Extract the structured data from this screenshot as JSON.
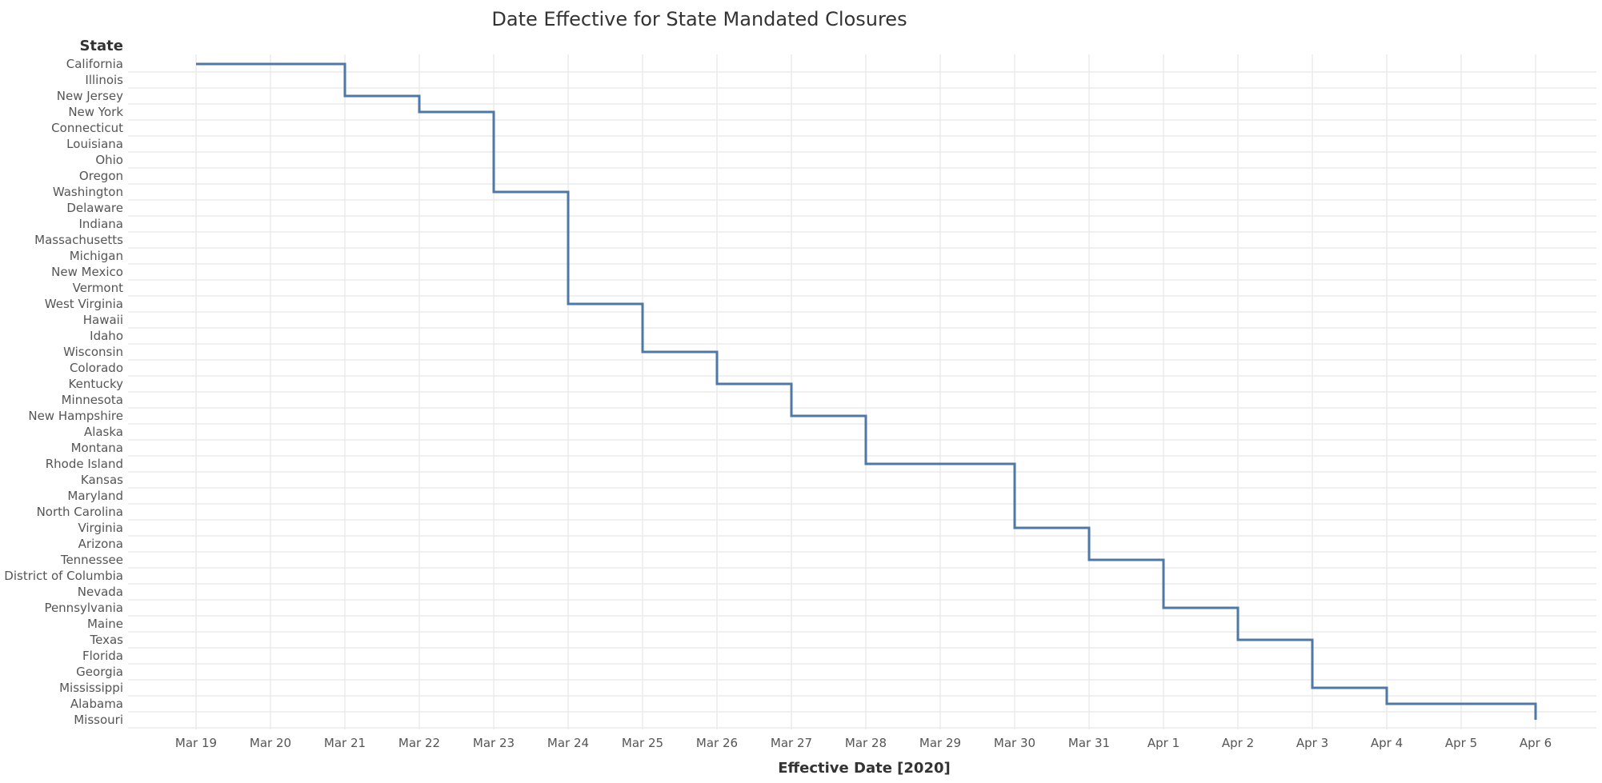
{
  "chart_data": {
    "type": "line",
    "subtype": "step",
    "title": "Date Effective for State Mandated Closures",
    "xlabel": "Effective Date [2020]",
    "ylabel": "State",
    "grid": true,
    "colors": {
      "line": "#4e79a7",
      "grid": "#ebebeb",
      "text": "#555555",
      "title": "#333333"
    },
    "x_ticks": [
      "Mar 19",
      "Mar 20",
      "Mar 21",
      "Mar 22",
      "Mar 23",
      "Mar 24",
      "Mar 25",
      "Mar 26",
      "Mar 27",
      "Mar 28",
      "Mar 29",
      "Mar 30",
      "Mar 31",
      "Apr 1",
      "Apr 2",
      "Apr 3",
      "Apr 4",
      "Apr 5",
      "Apr 6"
    ],
    "xlim": [
      "2020-03-19",
      "2020-04-06"
    ],
    "states": [
      "California",
      "Illinois",
      "New Jersey",
      "New York",
      "Connecticut",
      "Louisiana",
      "Ohio",
      "Oregon",
      "Washington",
      "Delaware",
      "Indiana",
      "Massachusetts",
      "Michigan",
      "New Mexico",
      "Vermont",
      "West Virginia",
      "Hawaii",
      "Idaho",
      "Wisconsin",
      "Colorado",
      "Kentucky",
      "Minnesota",
      "New Hampshire",
      "Alaska",
      "Montana",
      "Rhode Island",
      "Kansas",
      "Maryland",
      "North Carolina",
      "Virginia",
      "Arizona",
      "Tennessee",
      "District of Columbia",
      "Nevada",
      "Pennsylvania",
      "Maine",
      "Texas",
      "Florida",
      "Georgia",
      "Mississippi",
      "Alabama",
      "Missouri"
    ],
    "series": [
      {
        "points": [
          {
            "state": "California",
            "date": "2020-03-19"
          },
          {
            "state": "Illinois",
            "date": "2020-03-21"
          },
          {
            "state": "New Jersey",
            "date": "2020-03-21"
          },
          {
            "state": "New York",
            "date": "2020-03-22"
          },
          {
            "state": "Connecticut",
            "date": "2020-03-23"
          },
          {
            "state": "Louisiana",
            "date": "2020-03-23"
          },
          {
            "state": "Ohio",
            "date": "2020-03-23"
          },
          {
            "state": "Oregon",
            "date": "2020-03-23"
          },
          {
            "state": "Washington",
            "date": "2020-03-23"
          },
          {
            "state": "Delaware",
            "date": "2020-03-24"
          },
          {
            "state": "Indiana",
            "date": "2020-03-24"
          },
          {
            "state": "Massachusetts",
            "date": "2020-03-24"
          },
          {
            "state": "Michigan",
            "date": "2020-03-24"
          },
          {
            "state": "New Mexico",
            "date": "2020-03-24"
          },
          {
            "state": "Vermont",
            "date": "2020-03-24"
          },
          {
            "state": "West Virginia",
            "date": "2020-03-24"
          },
          {
            "state": "Hawaii",
            "date": "2020-03-25"
          },
          {
            "state": "Idaho",
            "date": "2020-03-25"
          },
          {
            "state": "Wisconsin",
            "date": "2020-03-25"
          },
          {
            "state": "Colorado",
            "date": "2020-03-26"
          },
          {
            "state": "Kentucky",
            "date": "2020-03-26"
          },
          {
            "state": "Minnesota",
            "date": "2020-03-27"
          },
          {
            "state": "New Hampshire",
            "date": "2020-03-27"
          },
          {
            "state": "Alaska",
            "date": "2020-03-28"
          },
          {
            "state": "Montana",
            "date": "2020-03-28"
          },
          {
            "state": "Rhode Island",
            "date": "2020-03-28"
          },
          {
            "state": "Kansas",
            "date": "2020-03-30"
          },
          {
            "state": "Maryland",
            "date": "2020-03-30"
          },
          {
            "state": "North Carolina",
            "date": "2020-03-30"
          },
          {
            "state": "Virginia",
            "date": "2020-03-30"
          },
          {
            "state": "Arizona",
            "date": "2020-03-31"
          },
          {
            "state": "Tennessee",
            "date": "2020-03-31"
          },
          {
            "state": "District of Columbia",
            "date": "2020-04-01"
          },
          {
            "state": "Nevada",
            "date": "2020-04-01"
          },
          {
            "state": "Pennsylvania",
            "date": "2020-04-01"
          },
          {
            "state": "Maine",
            "date": "2020-04-02"
          },
          {
            "state": "Texas",
            "date": "2020-04-02"
          },
          {
            "state": "Florida",
            "date": "2020-04-03"
          },
          {
            "state": "Georgia",
            "date": "2020-04-03"
          },
          {
            "state": "Mississippi",
            "date": "2020-04-03"
          },
          {
            "state": "Alabama",
            "date": "2020-04-04"
          },
          {
            "state": "Missouri",
            "date": "2020-04-06"
          }
        ]
      }
    ]
  }
}
